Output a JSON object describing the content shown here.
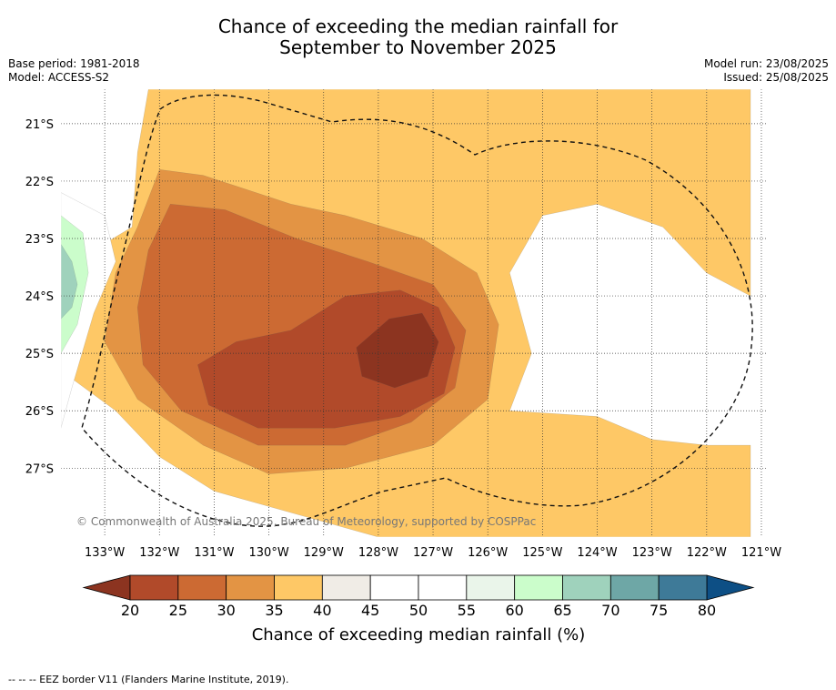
{
  "header": {
    "title_line1": "Chance of exceeding the median rainfall for",
    "title_line2": "September to November 2025",
    "base_period": "Base period: 1981-2018",
    "model": "Model: ACCESS-S2",
    "model_run": "Model run: 23/08/2025",
    "issued": "Issued: 25/08/2025"
  },
  "copyright": "© Commonwealth of Australia 2025, Bureau of Meteorology, supported by COSPPac",
  "footnote": "--  --  -- EEZ border V11 (Flanders Marine Institute, 2019).",
  "chart_data": {
    "type": "heatmap",
    "subtype": "filled-contour map",
    "x_axis": {
      "ticks": [
        -133,
        -132,
        -131,
        -130,
        -129,
        -128,
        -127,
        -126,
        -125,
        -124,
        -123,
        -122,
        -121
      ],
      "tick_labels": [
        "133°W",
        "132°W",
        "131°W",
        "130°W",
        "129°W",
        "128°W",
        "127°W",
        "126°W",
        "125°W",
        "124°W",
        "123°W",
        "122°W",
        "121°W"
      ],
      "range": [
        -133.8,
        -120.9
      ]
    },
    "y_axis": {
      "ticks": [
        -21,
        -22,
        -23,
        -24,
        -25,
        -26,
        -27
      ],
      "tick_labels": [
        "21°S",
        "22°S",
        "23°S",
        "24°S",
        "25°S",
        "26°S",
        "27°S"
      ],
      "range": [
        -28.2,
        -20.4
      ]
    },
    "grid": true,
    "colorbar": {
      "label": "Chance of exceeding median rainfall (%)",
      "bounds": [
        20,
        25,
        30,
        35,
        40,
        45,
        50,
        55,
        60,
        65,
        70,
        75,
        80
      ],
      "tick_labels": [
        "20",
        "25",
        "30",
        "35",
        "40",
        "45",
        "50",
        "55",
        "60",
        "65",
        "70",
        "75",
        "80"
      ],
      "colors": [
        "#b14a2a",
        "#cc6a33",
        "#e39444",
        "#fec866",
        "#f0ece6",
        "#ffffff",
        "#ffffff",
        "#eaf5ea",
        "#cbfdcb",
        "#9fd2bc",
        "#6ea7a6",
        "#3e7a98"
      ],
      "under_color": "#8c3420",
      "over_color": "#0d4f85",
      "extend": "both"
    },
    "regions": [
      {
        "level": 40,
        "label": "35-40%",
        "shape": [
          [
            -132.2,
            -20.4
          ],
          [
            -126.0,
            -20.4
          ],
          [
            -121.2,
            -20.4
          ],
          [
            -121.2,
            -24.0
          ],
          [
            -122.0,
            -23.6
          ],
          [
            -122.8,
            -22.8
          ],
          [
            -124.0,
            -22.4
          ],
          [
            -125.0,
            -22.6
          ],
          [
            -125.6,
            -23.6
          ],
          [
            -125.2,
            -25.0
          ],
          [
            -125.6,
            -26.0
          ],
          [
            -124.0,
            -26.1
          ],
          [
            -123.0,
            -26.5
          ],
          [
            -122.0,
            -26.6
          ],
          [
            -121.2,
            -26.6
          ],
          [
            -121.2,
            -28.2
          ],
          [
            -128.0,
            -28.2
          ],
          [
            -129.5,
            -27.8
          ],
          [
            -131.0,
            -27.4
          ],
          [
            -132.0,
            -26.8
          ],
          [
            -132.8,
            -26.0
          ],
          [
            -133.8,
            -25.3
          ],
          [
            -133.8,
            -24.0
          ],
          [
            -133.2,
            -23.2
          ],
          [
            -132.5,
            -22.8
          ],
          [
            -132.4,
            -21.5
          ]
        ]
      },
      {
        "level": 35,
        "label": "30-35%",
        "shape": [
          [
            -132.0,
            -21.8
          ],
          [
            -131.2,
            -21.9
          ],
          [
            -129.6,
            -22.4
          ],
          [
            -128.6,
            -22.6
          ],
          [
            -127.2,
            -23.0
          ],
          [
            -126.2,
            -23.6
          ],
          [
            -125.8,
            -24.5
          ],
          [
            -126.0,
            -25.8
          ],
          [
            -127.0,
            -26.6
          ],
          [
            -128.6,
            -27.0
          ],
          [
            -130.0,
            -27.1
          ],
          [
            -131.2,
            -26.6
          ],
          [
            -132.4,
            -25.8
          ],
          [
            -133.0,
            -24.8
          ],
          [
            -132.8,
            -23.6
          ],
          [
            -132.4,
            -22.8
          ]
        ]
      },
      {
        "level": 30,
        "label": "25-30%",
        "shape": [
          [
            -131.8,
            -22.4
          ],
          [
            -130.8,
            -22.5
          ],
          [
            -129.5,
            -23.0
          ],
          [
            -128.2,
            -23.4
          ],
          [
            -127.0,
            -23.8
          ],
          [
            -126.4,
            -24.6
          ],
          [
            -126.6,
            -25.6
          ],
          [
            -127.4,
            -26.2
          ],
          [
            -128.6,
            -26.6
          ],
          [
            -130.2,
            -26.6
          ],
          [
            -131.6,
            -26.0
          ],
          [
            -132.3,
            -25.2
          ],
          [
            -132.4,
            -24.2
          ],
          [
            -132.2,
            -23.2
          ]
        ]
      },
      {
        "level": 25,
        "label": "20-25%",
        "shape": [
          [
            -128.6,
            -24.0
          ],
          [
            -127.6,
            -23.9
          ],
          [
            -126.9,
            -24.2
          ],
          [
            -126.6,
            -24.9
          ],
          [
            -126.8,
            -25.7
          ],
          [
            -127.6,
            -26.1
          ],
          [
            -128.8,
            -26.3
          ],
          [
            -130.2,
            -26.3
          ],
          [
            -131.1,
            -25.9
          ],
          [
            -131.3,
            -25.2
          ],
          [
            -130.6,
            -24.8
          ],
          [
            -129.6,
            -24.6
          ]
        ]
      },
      {
        "level": 20,
        "label": "below 20%",
        "shape": [
          [
            -127.8,
            -24.4
          ],
          [
            -127.2,
            -24.3
          ],
          [
            -126.9,
            -24.8
          ],
          [
            -127.1,
            -25.4
          ],
          [
            -127.7,
            -25.6
          ],
          [
            -128.3,
            -25.4
          ],
          [
            -128.4,
            -24.9
          ]
        ]
      },
      {
        "level": 55,
        "label": "50-55%",
        "shape": [
          [
            -133.8,
            -22.2
          ],
          [
            -133.0,
            -22.6
          ],
          [
            -132.8,
            -23.4
          ],
          [
            -133.2,
            -24.3
          ],
          [
            -133.6,
            -25.6
          ],
          [
            -133.8,
            -26.3
          ]
        ]
      },
      {
        "level": 65,
        "label": "60-65%",
        "shape": [
          [
            -133.8,
            -22.6
          ],
          [
            -133.4,
            -22.9
          ],
          [
            -133.3,
            -23.6
          ],
          [
            -133.5,
            -24.5
          ],
          [
            -133.8,
            -25.0
          ]
        ]
      },
      {
        "level": 70,
        "label": "65-70%",
        "shape": [
          [
            -133.8,
            -23.1
          ],
          [
            -133.6,
            -23.4
          ],
          [
            -133.5,
            -23.8
          ],
          [
            -133.6,
            -24.2
          ],
          [
            -133.8,
            -24.4
          ]
        ]
      }
    ]
  }
}
